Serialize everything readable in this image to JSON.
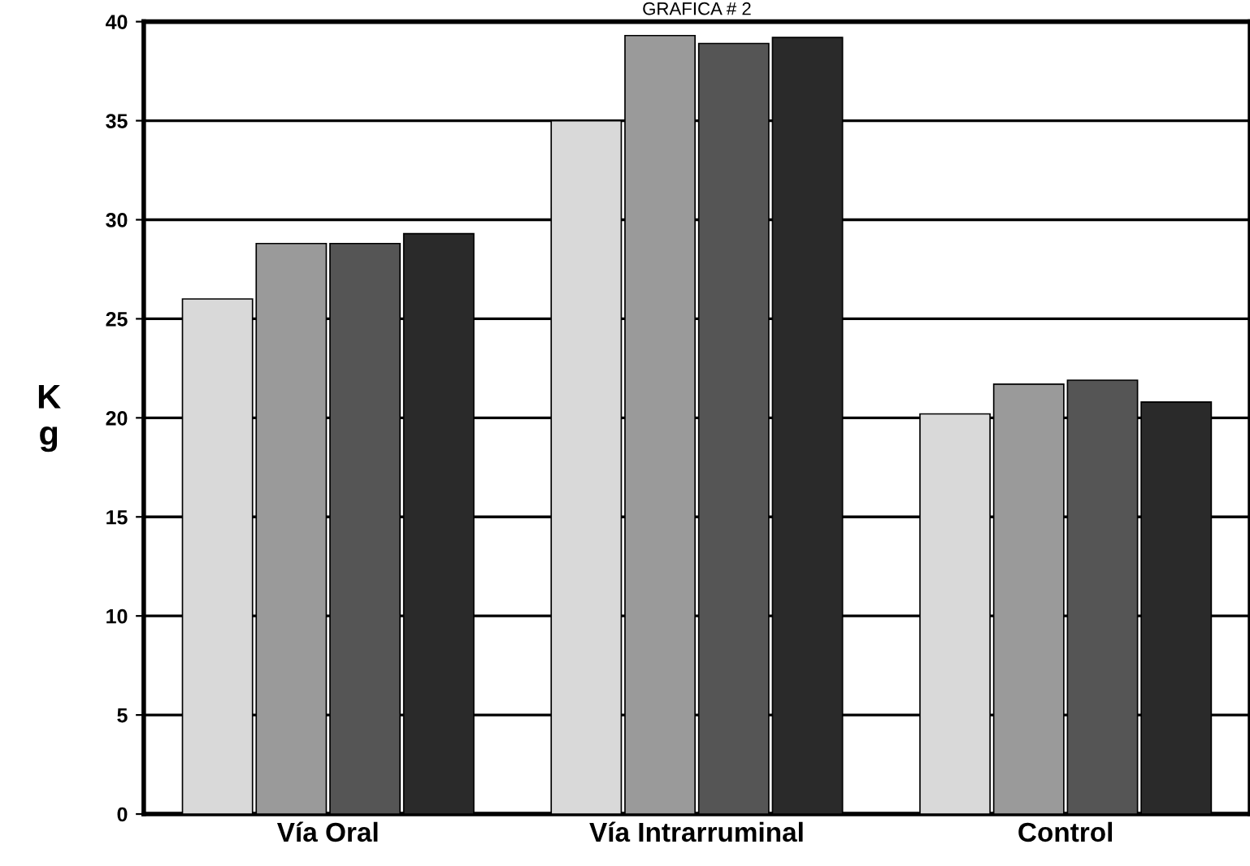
{
  "chart_data": {
    "type": "bar",
    "title": "GRAFICA # 2",
    "ylabel": "K\ng",
    "categories": [
      "Vía Oral",
      "Vía Intrarruminal",
      "Control"
    ],
    "series": [
      {
        "color": "#d9d9d9",
        "values": [
          26,
          35,
          20.2
        ]
      },
      {
        "color": "#9a9a9a",
        "values": [
          28.8,
          39.3,
          21.7
        ]
      },
      {
        "color": "#555555",
        "values": [
          28.8,
          38.9,
          21.9
        ]
      },
      {
        "color": "#2a2a2a",
        "values": [
          29.3,
          39.2,
          20.8
        ]
      }
    ],
    "ylim": [
      0,
      40
    ],
    "yticks": [
      0,
      5,
      10,
      15,
      20,
      25,
      30,
      35,
      40
    ],
    "grid": "y"
  }
}
